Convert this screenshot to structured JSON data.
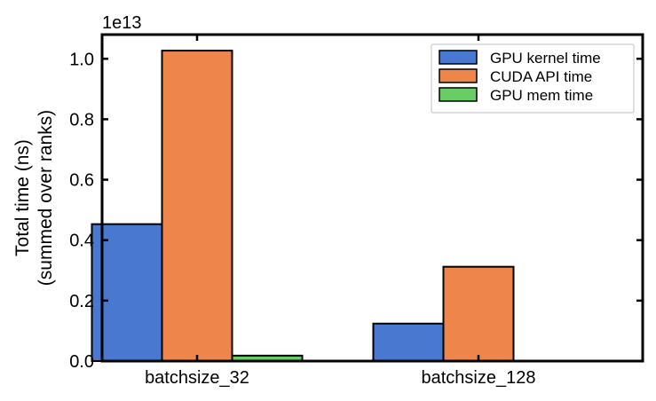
{
  "chart_data": {
    "type": "bar",
    "categories": [
      "batchsize_32",
      "batchsize_128"
    ],
    "series": [
      {
        "name": "GPU kernel time",
        "color": "#4878cf",
        "values": [
          4530000000000.0,
          1240000000000.0
        ]
      },
      {
        "name": "CUDA API time",
        "color": "#ee854a",
        "values": [
          10270000000000.0,
          3120000000000.0
        ]
      },
      {
        "name": "GPU mem time",
        "color": "#6acc64",
        "values": [
          180000000000.0,
          0
        ]
      }
    ],
    "ylabel_line1": "Total time (ns)",
    "ylabel_line2": "(summed over ranks)",
    "yticks": [
      0.0,
      0.2,
      0.4,
      0.6,
      0.8,
      1.0
    ],
    "ytick_labels": [
      "0.0",
      "0.2",
      "0.4",
      "0.6",
      "0.8",
      "1.0"
    ],
    "y_scale_factor": 10000000000000.0,
    "y_offset_label": "1e13",
    "ylim": [
      0,
      10800000000000.0
    ],
    "legend_position": "top-right",
    "grid": false
  }
}
